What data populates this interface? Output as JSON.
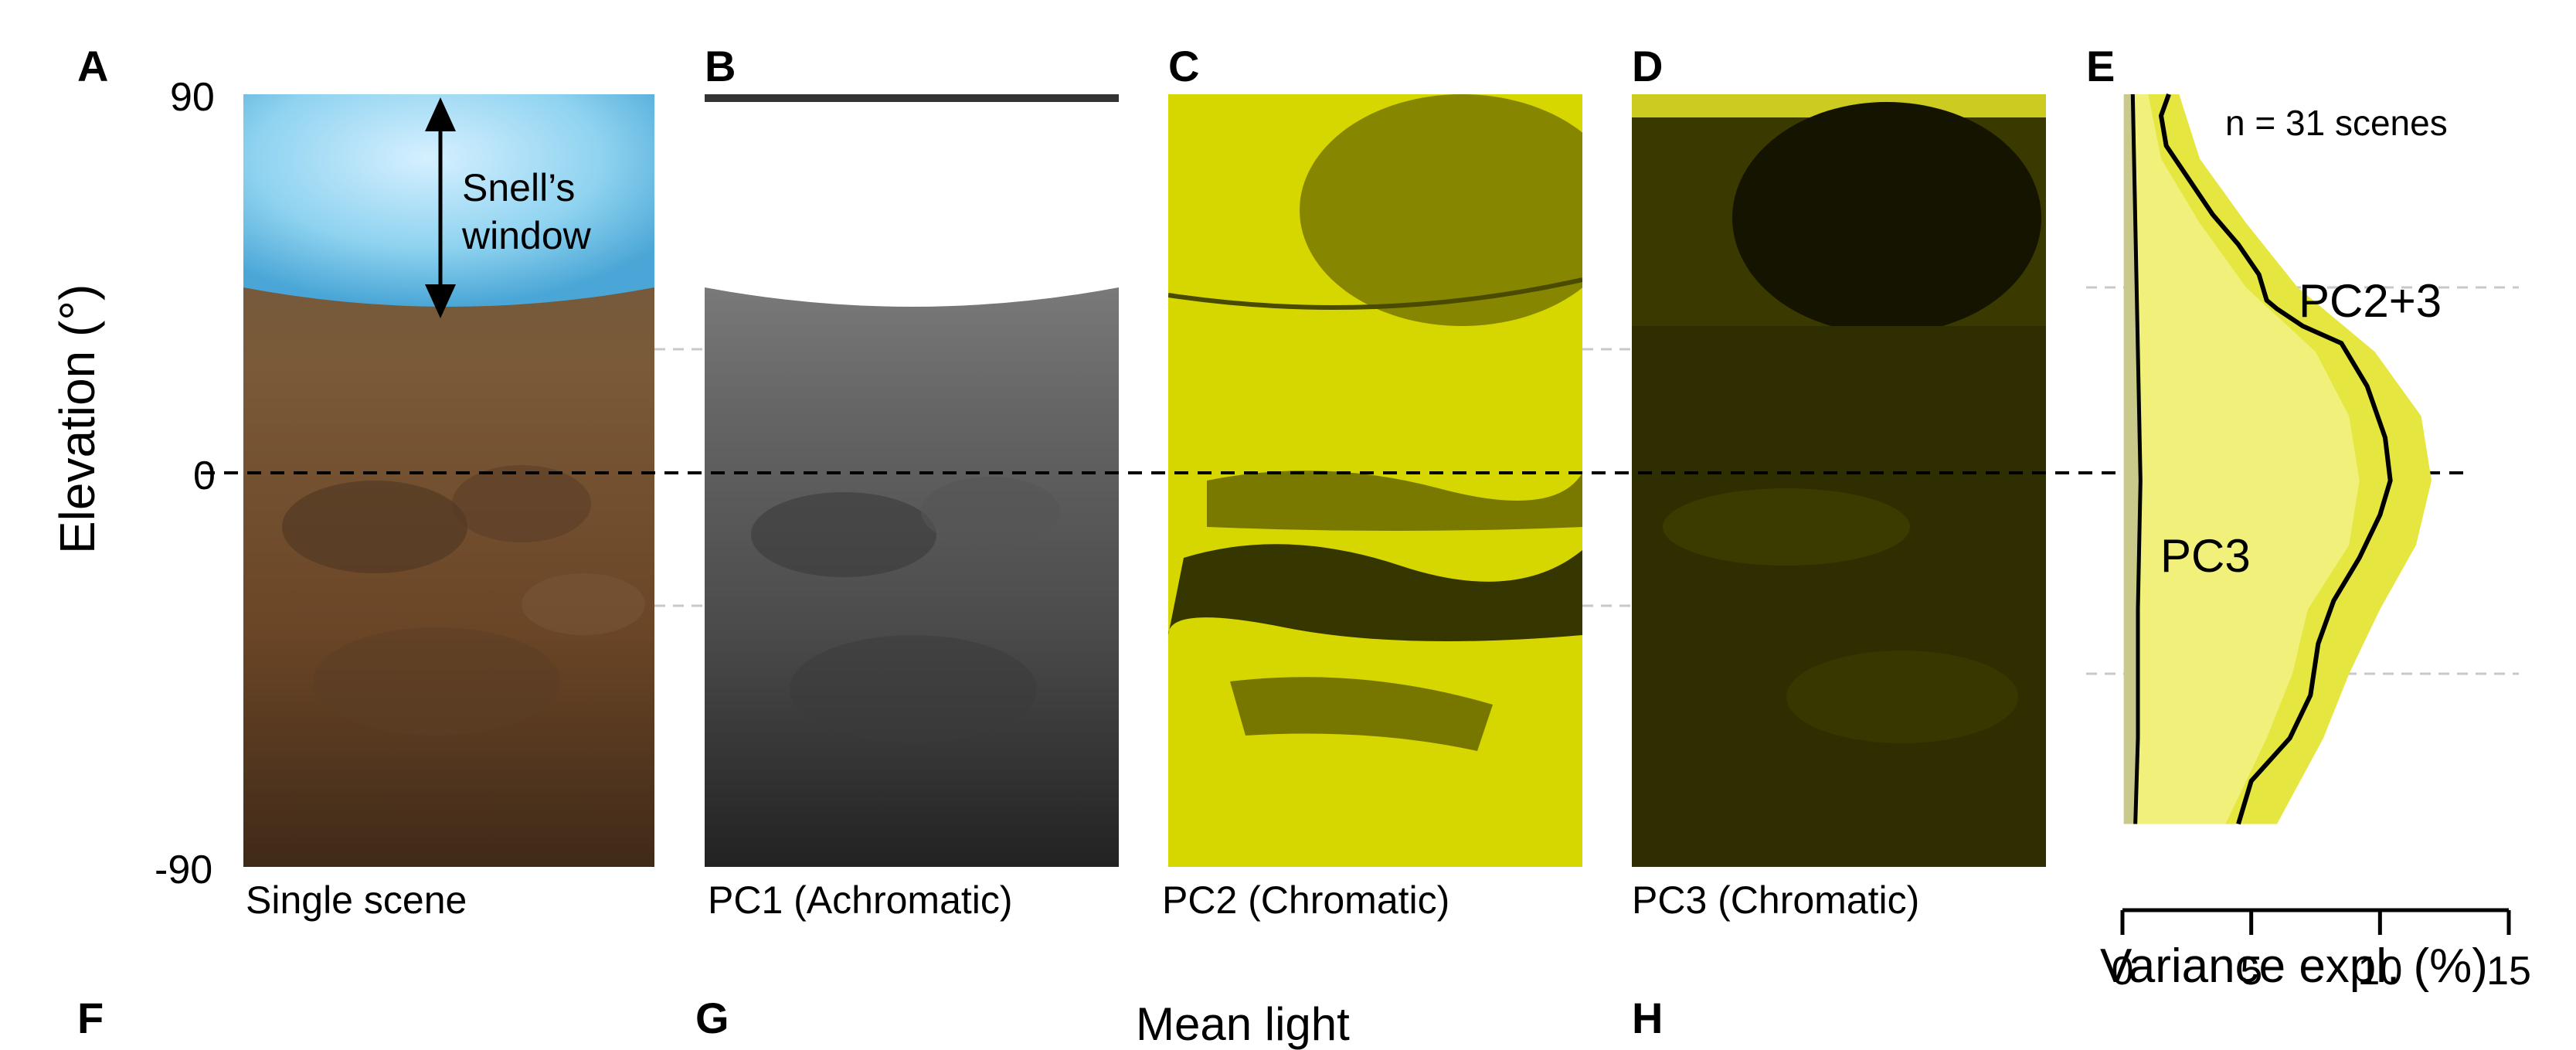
{
  "panels": {
    "A": {
      "letter": "A",
      "caption": "Single scene",
      "annotation": "Snell’s\nwindow",
      "annotation_l1": "Snell’s",
      "annotation_l2": "window"
    },
    "B": {
      "letter": "B",
      "caption": "PC1 (Achromatic)"
    },
    "C": {
      "letter": "C",
      "caption": "PC2 (Chromatic)"
    },
    "D": {
      "letter": "D",
      "caption": "PC3 (Chromatic)"
    },
    "E": {
      "letter": "E",
      "note": "n = 31 scenes",
      "label_pc23": "PC2+3",
      "label_pc3": "PC3"
    },
    "F": {
      "letter": "F"
    },
    "G": {
      "letter": "G",
      "partial_title": "Mean light"
    },
    "H": {
      "letter": "H"
    }
  },
  "y_axis": {
    "label": "Elevation (°)",
    "ticks": [
      "90",
      "0",
      "-90"
    ]
  },
  "colors": {
    "yellow": "#d6d600",
    "yellow_light": "#f0f07a",
    "yellow_mid": "#e6e640",
    "sky": "#8fd3f0"
  },
  "chart_data": {
    "type": "area",
    "xlabel": "Variance expl. (%)",
    "x_ticks": [
      "0",
      "5",
      "10",
      "15"
    ],
    "xlim": [
      0,
      15
    ],
    "ylim": [
      -90,
      90
    ],
    "y_gridlines": [
      45,
      0,
      -45
    ],
    "series": [
      {
        "name": "PC2+3",
        "points": [
          [
            1.8,
            90
          ],
          [
            1.5,
            85
          ],
          [
            1.7,
            78
          ],
          [
            2.6,
            70
          ],
          [
            3.5,
            62
          ],
          [
            4.5,
            55
          ],
          [
            5.3,
            48
          ],
          [
            5.6,
            42
          ],
          [
            6.0,
            40
          ],
          [
            7.0,
            36
          ],
          [
            8.5,
            32
          ],
          [
            9.5,
            22
          ],
          [
            10.2,
            10
          ],
          [
            10.4,
            0
          ],
          [
            10.0,
            -8
          ],
          [
            9.2,
            -18
          ],
          [
            8.2,
            -28
          ],
          [
            7.6,
            -38
          ],
          [
            7.3,
            -50
          ],
          [
            6.5,
            -60
          ],
          [
            5.0,
            -70
          ],
          [
            4.5,
            -80
          ]
        ],
        "band_low": [
          [
            1.0,
            90
          ],
          [
            1.5,
            75
          ],
          [
            3,
            60
          ],
          [
            4.8,
            45
          ],
          [
            7.5,
            30
          ],
          [
            8.8,
            15
          ],
          [
            9.2,
            0
          ],
          [
            8.8,
            -15
          ],
          [
            7.2,
            -30
          ],
          [
            6.6,
            -45
          ],
          [
            5.6,
            -60
          ],
          [
            4.0,
            -80
          ]
        ],
        "band_high": [
          [
            2.2,
            90
          ],
          [
            3.0,
            75
          ],
          [
            4.8,
            60
          ],
          [
            6.8,
            45
          ],
          [
            9.8,
            30
          ],
          [
            11.6,
            15
          ],
          [
            12.0,
            0
          ],
          [
            11.4,
            -15
          ],
          [
            10.0,
            -30
          ],
          [
            8.8,
            -45
          ],
          [
            7.8,
            -60
          ],
          [
            6.0,
            -80
          ]
        ]
      },
      {
        "name": "PC3",
        "points": [
          [
            0.4,
            90
          ],
          [
            0.5,
            60
          ],
          [
            0.6,
            30
          ],
          [
            0.7,
            0
          ],
          [
            0.6,
            -30
          ],
          [
            0.6,
            -60
          ],
          [
            0.5,
            -80
          ]
        ]
      }
    ]
  }
}
